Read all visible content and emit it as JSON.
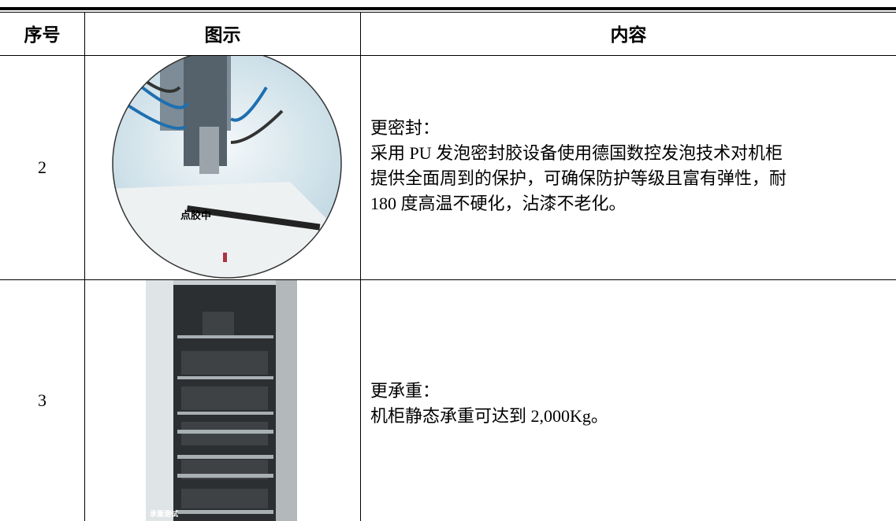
{
  "table": {
    "headers": [
      "序号",
      "图示",
      "内容"
    ],
    "rows": [
      {
        "number": "2",
        "image_label": "点胶中",
        "title": "更密封：",
        "lines": [
          "采用 PU 发泡密封胶设备使用德国数控发泡技术对机柜",
          "提供全面周到的保护，可确保防护等级且富有弹性，耐",
          "180 度高温不硬化，沾漆不老化。"
        ]
      },
      {
        "number": "3",
        "image_label": "承重测试",
        "title": "更承重：",
        "lines": [
          "机柜静态承重可达到 2,000Kg。"
        ]
      }
    ]
  }
}
